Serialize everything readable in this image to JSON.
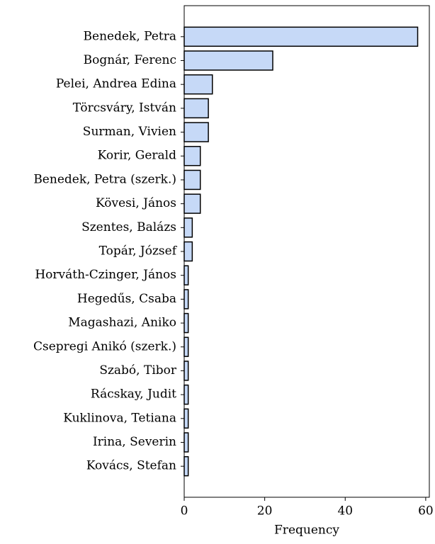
{
  "chart_data": {
    "type": "barh",
    "xlabel": "Frequency",
    "categories": [
      "Benedek, Petra",
      "Bognár, Ferenc",
      "Pelei, Andrea Edina",
      "Törcsváry, István",
      "Surman, Vivien",
      "Korir, Gerald",
      "Benedek, Petra (szerk.)",
      "Kövesi, János",
      "Szentes, Balázs",
      "Topár, József",
      "Horváth-Czinger, János",
      "Hegedűs, Csaba",
      "Magashazi, Aniko",
      "Csepregi Anikó (szerk.)",
      "Szabó, Tibor",
      "Rácskay, Judit",
      "Kuklinova, Tetiana",
      "Irina, Severin",
      "Kovács, Stefan"
    ],
    "values": [
      58,
      22,
      7,
      6,
      6,
      4,
      4,
      4,
      2,
      2,
      1,
      1,
      1,
      1,
      1,
      1,
      1,
      1,
      1
    ],
    "color": "#c6d9f7",
    "edgecolor": "#000000",
    "xlim": [
      0,
      60.9
    ],
    "xticks": [
      0,
      20,
      40,
      60
    ]
  }
}
